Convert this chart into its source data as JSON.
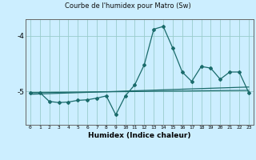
{
  "title": "Courbe de l'humidex pour Matro (Sw)",
  "xlabel": "Humidex (Indice chaleur)",
  "bg_color": "#cceeff",
  "grid_color": "#99cccc",
  "line_color": "#1a6b6b",
  "spine_color": "#666666",
  "xlim": [
    -0.5,
    23.5
  ],
  "ylim": [
    -5.6,
    -3.7
  ],
  "yticks": [
    -5.0,
    -4.0
  ],
  "xticks": [
    0,
    1,
    2,
    3,
    4,
    5,
    6,
    7,
    8,
    9,
    10,
    11,
    12,
    13,
    14,
    15,
    16,
    17,
    18,
    19,
    20,
    21,
    22,
    23
  ],
  "series1_x": [
    0,
    1,
    2,
    3,
    4,
    5,
    6,
    7,
    8,
    9,
    10,
    11,
    12,
    13,
    14,
    15,
    16,
    17,
    18,
    19,
    20,
    21,
    22,
    23
  ],
  "series1_y": [
    -5.02,
    -5.02,
    -5.18,
    -5.2,
    -5.19,
    -5.16,
    -5.15,
    -5.12,
    -5.08,
    -5.42,
    -5.08,
    -4.88,
    -4.52,
    -3.88,
    -3.83,
    -4.22,
    -4.65,
    -4.82,
    -4.55,
    -4.58,
    -4.78,
    -4.65,
    -4.65,
    -5.02
  ],
  "series2_x": [
    0,
    23
  ],
  "series2_y": [
    -5.05,
    -4.92
  ],
  "series3_x": [
    0,
    23
  ],
  "series3_y": [
    -5.02,
    -4.98
  ]
}
